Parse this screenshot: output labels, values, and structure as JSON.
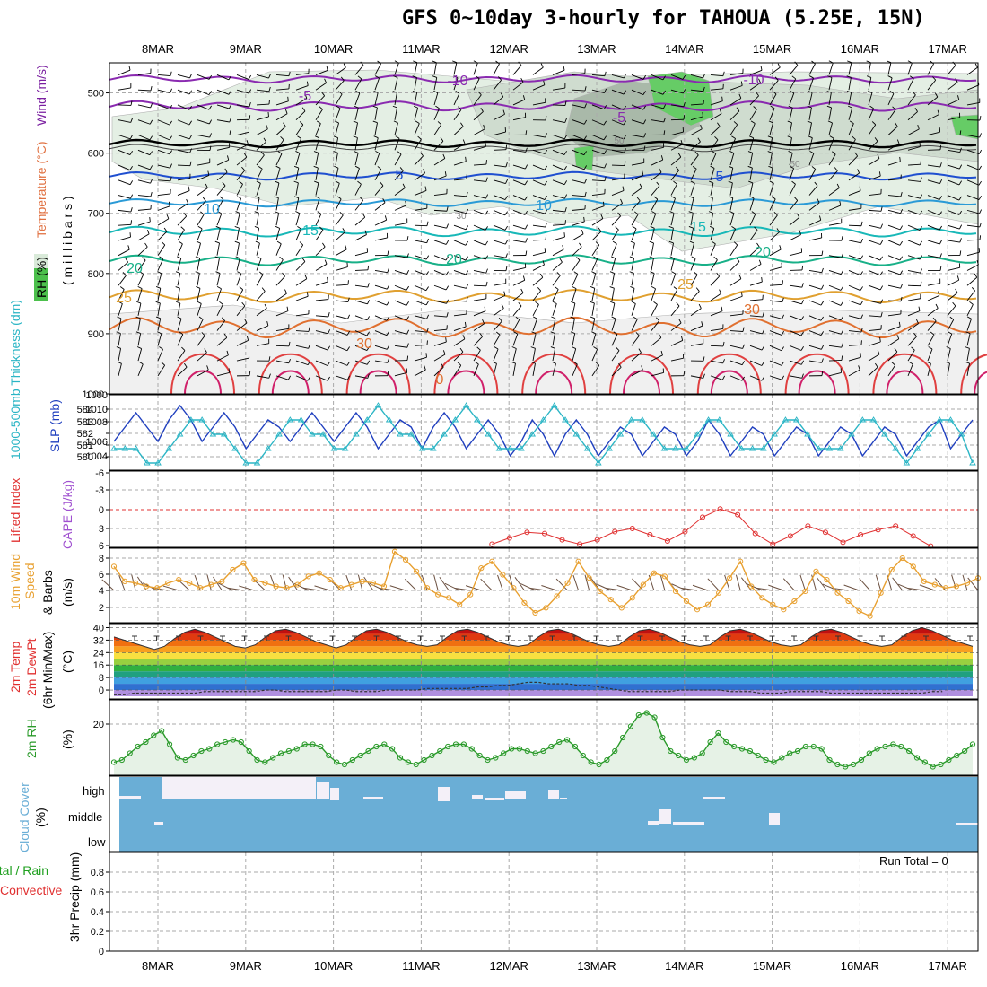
{
  "page": {
    "title": "GFS 0~10day 3-hourly for TAHOUA (5.25E, 15N)"
  },
  "dates": [
    "8MAR",
    "9MAR",
    "10MAR",
    "11MAR",
    "12MAR",
    "13MAR",
    "14MAR",
    "15MAR",
    "16MAR",
    "17MAR"
  ],
  "panels": {
    "upper_air": {
      "label_wind": "Wind (m/s)",
      "label_temp": "Temperature (°C)",
      "label_rh": "RH (%)",
      "label_units": "( m i l l i b a r s )",
      "pressure_ticks": [
        "500",
        "600",
        "700",
        "800",
        "900",
        "1000"
      ],
      "contour_labels": [
        "-10",
        "-10",
        "-5",
        "-5",
        "5",
        "5",
        "10",
        "10",
        "15",
        "15",
        "20",
        "20",
        "20",
        "25",
        "25",
        "30",
        "30",
        "0",
        "50",
        "50",
        "30"
      ]
    },
    "thickness_slp": {
      "label_thk": "1000-500mb Thickness (dm)",
      "label_slp": "SLP (mb)",
      "thk_ticks": [
        "584",
        "583",
        "582",
        "581",
        "580"
      ],
      "slp_ticks": [
        "1010",
        "1008",
        "1006",
        "1004"
      ],
      "top_tick": "1000"
    },
    "instability": {
      "label_li": "Lifted Index",
      "label_cape": "CAPE (J/kg)",
      "ticks": [
        "-6",
        "-3",
        "0",
        "3",
        "6"
      ]
    },
    "wind10m": {
      "label_a": "10m Wind",
      "label_b": "Speed",
      "label_c": "& Barbs",
      "label_d": "(m/s)",
      "ticks": [
        "8",
        "6",
        "4",
        "2"
      ]
    },
    "temp2m": {
      "label_a": "2m Temp",
      "label_b": "2m DewPt",
      "label_c": "(6hr Min/Max)",
      "label_d": "(°C)",
      "ticks": [
        "40",
        "32",
        "24",
        "16",
        "8",
        "0"
      ]
    },
    "rh2m": {
      "label_a": "2m RH",
      "label_b": "(%)",
      "ticks": [
        "20"
      ]
    },
    "cloud": {
      "label_a": "Cloud Cover",
      "label_b": "(%)",
      "levels": [
        "high",
        "middle",
        "low"
      ]
    },
    "precip": {
      "label_a": "Total / Rain",
      "label_b": "Convective",
      "label_c": "3hr Precip (mm)",
      "ticks": [
        "0.8",
        "0.6",
        "0.4",
        "0.2",
        "0"
      ],
      "run_total": "Run Total = 0"
    }
  },
  "colors": {
    "slp": "#1f3fbf",
    "thickness": "#2ab5c5",
    "lifted_index": "#e03030",
    "cape": "#a050d0",
    "wind_speed": "#e8a030",
    "rh": "#2a9a2a",
    "cloud": "#6aaed6",
    "precip_total": "#20a020"
  },
  "chart_data": [
    {
      "type": "line",
      "title": "1000-500mb Thickness (dm) / SLP (mb)",
      "x_unit": "3-hourly steps from 7MAR 12Z",
      "series": [
        {
          "name": "SLP (mb)",
          "values": [
            1006,
            1008,
            1010,
            1008,
            1006,
            1009,
            1011,
            1009,
            1006,
            1008,
            1010,
            1008,
            1005,
            1007,
            1009,
            1008,
            1006,
            1008,
            1010,
            1008,
            1006,
            1008,
            1010,
            1008,
            1005,
            1007,
            1009,
            1008,
            1005,
            1008,
            1010,
            1008,
            1005,
            1007,
            1009,
            1007,
            1004,
            1006,
            1009,
            1007,
            1004,
            1007,
            1009,
            1007,
            1004,
            1006,
            1008,
            1007,
            1004,
            1006,
            1008,
            1007,
            1004,
            1006,
            1009,
            1007,
            1004,
            1006,
            1008,
            1007,
            1004,
            1006,
            1008,
            1007,
            1004,
            1006,
            1008,
            1007,
            1004,
            1006,
            1008,
            1007,
            1004,
            1006,
            1008,
            1009,
            1005,
            1007,
            1009
          ]
        },
        {
          "name": "1000-500mb Thickness (dm)",
          "values": [
            581,
            581,
            581,
            580,
            580,
            581,
            582,
            583,
            583,
            582,
            582,
            581,
            580,
            580,
            581,
            582,
            583,
            583,
            582,
            582,
            581,
            581,
            582,
            583,
            584,
            583,
            582,
            582,
            581,
            581,
            582,
            583,
            584,
            583,
            582,
            581,
            581,
            581,
            582,
            583,
            584,
            583,
            582,
            581,
            580,
            581,
            582,
            583,
            583,
            582,
            581,
            581,
            581,
            582,
            583,
            583,
            582,
            581,
            581,
            581,
            582,
            583,
            583,
            582,
            581,
            581,
            581,
            582,
            583,
            583,
            582,
            581,
            580,
            581,
            582,
            583,
            583,
            582,
            580
          ]
        }
      ],
      "ylim_slp": [
        1002,
        1012
      ],
      "ylim_thickness": [
        579.5,
        584.5
      ]
    },
    {
      "type": "line",
      "title": "Lifted Index / CAPE (J/kg)",
      "series": [
        {
          "name": "Lifted Index",
          "x_days": [
            4.0,
            4.2,
            4.4,
            4.6,
            4.8,
            5.0,
            5.2,
            5.4,
            5.6,
            5.8,
            6.0,
            6.2,
            6.4,
            6.6,
            6.8,
            7.0,
            7.2,
            7.4,
            7.6,
            7.8,
            8.0,
            8.2,
            8.4,
            8.6,
            8.8,
            9.0
          ],
          "values": [
            5.5,
            4.5,
            3.6,
            3.8,
            4.8,
            5.5,
            4.8,
            3.5,
            3.0,
            4.0,
            5.0,
            3.5,
            1.2,
            -0.1,
            0.8,
            3.8,
            5.5,
            4.2,
            2.6,
            3.6,
            5.2,
            4.0,
            3.2,
            2.6,
            4.2,
            5.8
          ]
        }
      ],
      "ylim": [
        6,
        -6
      ]
    },
    {
      "type": "line",
      "title": "10m Wind Speed (m/s)",
      "series": [
        {
          "name": "10m Wind Speed",
          "values": [
            6.8,
            5.0,
            4.8,
            4.4,
            4.2,
            4.8,
            5.2,
            4.8,
            4.2,
            4.6,
            5.0,
            6.4,
            7.2,
            5.2,
            4.8,
            4.4,
            4.2,
            4.6,
            5.6,
            6.0,
            5.2,
            4.2,
            4.6,
            5.0,
            4.8,
            4.4,
            8.6,
            7.6,
            6.2,
            4.2,
            3.4,
            3.0,
            2.2,
            3.4,
            6.6,
            7.4,
            5.8,
            4.2,
            2.4,
            1.2,
            1.8,
            3.2,
            4.8,
            7.4,
            5.4,
            3.8,
            2.8,
            1.8,
            3.0,
            4.6,
            6.0,
            5.6,
            3.8,
            2.6,
            1.6,
            2.2,
            3.6,
            5.4,
            7.4,
            4.4,
            3.0,
            2.2,
            1.6,
            2.6,
            3.8,
            6.2,
            5.2,
            3.6,
            2.6,
            1.4,
            0.8,
            3.6,
            6.4,
            7.8,
            6.8,
            5.0,
            4.6,
            4.2,
            4.4,
            4.8,
            5.4
          ]
        }
      ],
      "ylim": [
        0,
        9
      ]
    },
    {
      "type": "area",
      "title": "2m Temp / 2m DewPt (°C)",
      "series": [
        {
          "name": "2m Temp",
          "values": [
            34,
            32,
            30,
            28,
            26,
            28,
            33,
            37,
            39,
            37,
            34,
            31,
            28,
            27,
            29,
            34,
            38,
            39,
            37,
            34,
            31,
            29,
            27,
            29,
            34,
            38,
            39,
            37,
            34,
            31,
            29,
            28,
            29,
            34,
            38,
            39,
            37,
            34,
            31,
            29,
            28,
            29,
            34,
            38,
            39,
            37,
            34,
            31,
            29,
            28,
            29,
            34,
            38,
            39,
            37,
            34,
            31,
            29,
            28,
            29,
            34,
            38,
            39,
            37,
            34,
            31,
            29,
            28,
            29,
            34,
            38,
            39,
            37,
            34,
            31,
            29,
            28,
            29,
            34,
            38,
            40,
            38,
            35,
            32,
            30,
            28
          ]
        },
        {
          "name": "2m DewPt",
          "values": [
            -3,
            -3,
            -2,
            -2,
            -2,
            -2,
            -2,
            -2,
            -2,
            -1,
            -1,
            -1,
            -1,
            -1,
            -1,
            0,
            0,
            -1,
            -1,
            -1,
            -1,
            -1,
            0,
            0,
            -1,
            -1,
            -1,
            0,
            0,
            0,
            0,
            1,
            1,
            1,
            1,
            1,
            2,
            2,
            3,
            3,
            4,
            5,
            5,
            4,
            4,
            4,
            3,
            3,
            2,
            1,
            0,
            -1,
            -1,
            -1,
            -1,
            -1,
            0,
            0,
            0,
            0,
            0,
            -1,
            -1,
            -1,
            -2,
            -2,
            -2,
            -1,
            -1,
            -1,
            -1,
            -2,
            -2,
            -2,
            -2,
            -2,
            -2,
            -2,
            -2,
            -2,
            -2,
            -1,
            -1
          ]
        }
      ],
      "ylim": [
        -4,
        42
      ]
    },
    {
      "type": "area",
      "title": "2m RH (%)",
      "series": [
        {
          "name": "2m RH",
          "values": [
            5,
            6,
            9,
            12,
            14,
            17,
            19,
            13,
            7,
            6,
            8,
            10,
            11,
            13,
            14,
            15,
            14,
            10,
            6,
            5,
            7,
            9,
            10,
            11,
            13,
            13,
            12,
            8,
            5,
            4,
            6,
            8,
            10,
            12,
            13,
            11,
            7,
            5,
            4,
            6,
            8,
            10,
            12,
            13,
            13,
            11,
            8,
            6,
            7,
            9,
            11,
            11,
            10,
            9,
            10,
            12,
            14,
            15,
            12,
            8,
            5,
            4,
            6,
            10,
            16,
            21,
            26,
            27,
            25,
            16,
            10,
            8,
            6,
            7,
            9,
            14,
            18,
            14,
            12,
            11,
            10,
            8,
            6,
            5,
            7,
            9,
            10,
            12,
            12,
            11,
            6,
            4,
            3,
            4,
            6,
            9,
            11,
            12,
            13,
            12,
            10,
            7,
            5,
            3,
            4,
            6,
            8,
            10,
            13
          ]
        }
      ],
      "ylim": [
        0,
        32
      ]
    }
  ]
}
